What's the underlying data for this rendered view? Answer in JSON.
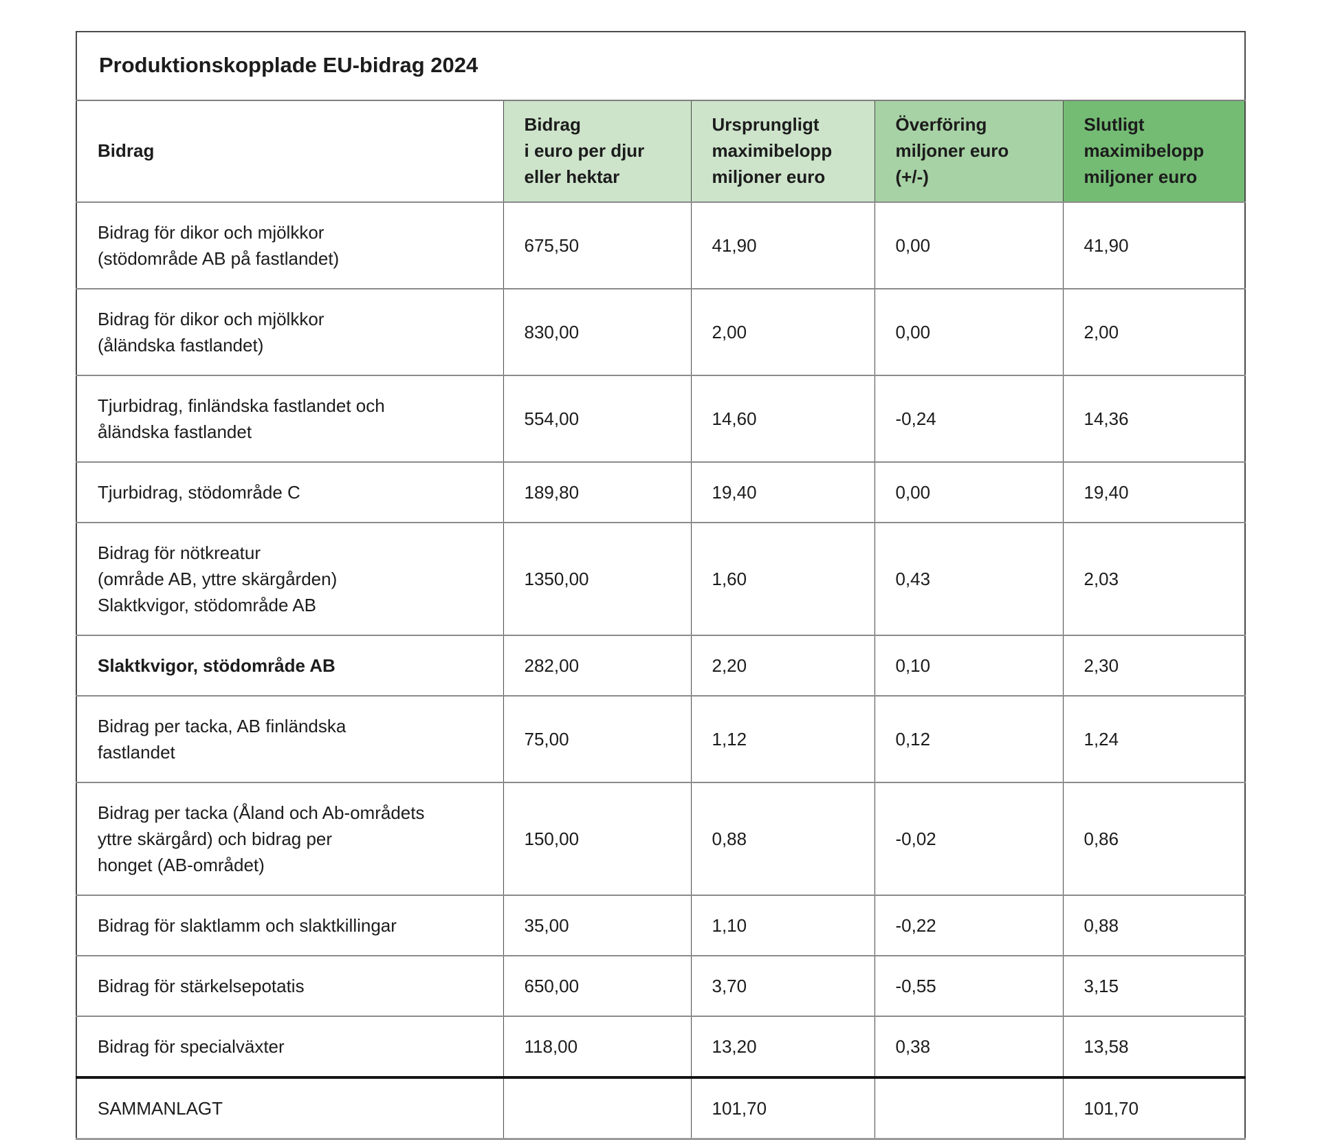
{
  "chart_data": {
    "type": "table",
    "title": "Produktionskopplade EU-bidrag 2024",
    "columns": [
      {
        "id": "bidrag",
        "label": "Bidrag",
        "bg": "#ffffff"
      },
      {
        "id": "euro-per-djur-eller-hektar",
        "label": "Bidrag\ni euro per djur\neller hektar",
        "bg": "#cde4cb"
      },
      {
        "id": "ursprungligt-maximibelopp",
        "label": "Ursprungligt\nmaximibelopp\nmiljoner euro",
        "bg": "#cde4cb"
      },
      {
        "id": "overforing",
        "label": "Överföring\nmiljoner euro\n(+/-)",
        "bg": "#a7d2a5"
      },
      {
        "id": "slutligt-maximibelopp",
        "label": "Slutligt\nmaximibelopp\nmiljoner euro",
        "bg": "#74bc74"
      }
    ],
    "rows": [
      {
        "label": "Bidrag för dikor och mjölkkor\n(stödområde AB på fastlandet)",
        "values": [
          "675,50",
          "41,90",
          "0,00",
          "41,90"
        ],
        "bold": false
      },
      {
        "label": "Bidrag för dikor och mjölkkor\n(åländska fastlandet)",
        "values": [
          "830,00",
          "2,00",
          "0,00",
          "2,00"
        ],
        "bold": false
      },
      {
        "label": "Tjurbidrag, finländska fastlandet och\nåländska fastlandet",
        "values": [
          "554,00",
          "14,60",
          "-0,24",
          "14,36"
        ],
        "bold": false
      },
      {
        "label": "Tjurbidrag, stödområde C",
        "values": [
          "189,80",
          "19,40",
          "0,00",
          "19,40"
        ],
        "bold": false
      },
      {
        "label": "Bidrag för nötkreatur\n(område AB, yttre skärgården)\nSlaktkvigor, stödområde AB",
        "values": [
          "1350,00",
          "1,60",
          "0,43",
          "2,03"
        ],
        "bold": false
      },
      {
        "label": "Slaktkvigor, stödområde AB",
        "values": [
          "282,00",
          "2,20",
          "0,10",
          "2,30"
        ],
        "bold": true
      },
      {
        "label": "Bidrag per tacka, AB finländska\nfastlandet",
        "values": [
          "75,00",
          "1,12",
          "0,12",
          "1,24"
        ],
        "bold": false
      },
      {
        "label": "Bidrag per tacka (Åland och Ab-områdets\nyttre skärgård) och bidrag per\nhonget (AB-området)",
        "values": [
          "150,00",
          "0,88",
          "-0,02",
          "0,86"
        ],
        "bold": false
      },
      {
        "label": "Bidrag för slaktlamm och slaktkillingar",
        "values": [
          "35,00",
          "1,10",
          "-0,22",
          "0,88"
        ],
        "bold": false
      },
      {
        "label": "Bidrag för stärkelsepotatis",
        "values": [
          "650,00",
          "3,70",
          "-0,55",
          "3,15"
        ],
        "bold": false
      },
      {
        "label": "Bidrag för specialväxter",
        "values": [
          "118,00",
          "13,20",
          "0,38",
          "13,58"
        ],
        "bold": false
      }
    ],
    "total": {
      "label": "SAMMANLAGT",
      "values": [
        "",
        "101,70",
        "",
        "101,70"
      ]
    },
    "layout_hints": {
      "header_colors": [
        "#ffffff",
        "#cde4cb",
        "#cde4cb",
        "#a7d2a5",
        "#74bc74"
      ],
      "grid": "on",
      "text_color": "#1c1c1c",
      "row_divider_color": "#8a8a8a",
      "total_divider_color": "#141414"
    }
  }
}
